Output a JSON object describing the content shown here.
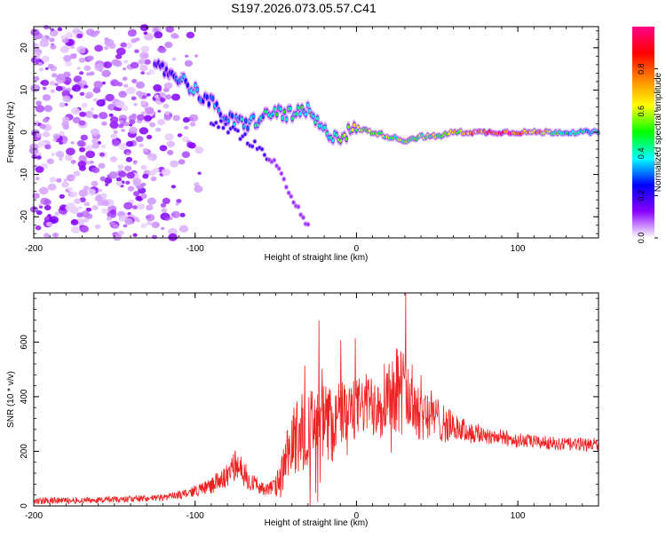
{
  "page_title": "S197.2026.073.05.57.C41",
  "chart_data": [
    {
      "type": "heatmap",
      "title": "S197.2026.073.05.57.C41",
      "xlabel": "Height of straight line (km)",
      "ylabel": "Frequency (Hz)",
      "xlim": [
        -200,
        150
      ],
      "ylim": [
        -25,
        25
      ],
      "x_ticks": [
        "-200",
        "-100",
        "0",
        "100"
      ],
      "y_ticks": [
        "-20",
        "-10",
        "0",
        "10",
        "20"
      ],
      "colorbar": {
        "label": "Normalized spectral amplitude",
        "range": [
          0,
          1
        ],
        "ticks": [
          "0.0",
          "0.2",
          "0.4",
          "0.6",
          "0.8"
        ],
        "colors": [
          "#ffffff",
          "#8800ff",
          "#0000ff",
          "#00ffff",
          "#00ff00",
          "#ffff00",
          "#ff8800",
          "#ff0000",
          "#ff0088"
        ]
      },
      "ridge": {
        "x": [
          -120,
          -110,
          -100,
          -90,
          -80,
          -70,
          -60,
          -50,
          -40,
          -30,
          -20,
          -10,
          0,
          10,
          20,
          30,
          40,
          50,
          60,
          70,
          80,
          90,
          100,
          110,
          120,
          130,
          140,
          150
        ],
        "frequency": [
          15,
          13,
          10,
          7,
          3,
          2,
          3,
          5,
          4,
          5,
          0,
          -1,
          1,
          0,
          -1,
          -2,
          -1,
          -1,
          0,
          0,
          0,
          0,
          0,
          0,
          0,
          0,
          0,
          0
        ],
        "amplitude": [
          0.2,
          0.3,
          0.35,
          0.3,
          0.35,
          0.4,
          0.4,
          0.45,
          0.5,
          0.45,
          0.4,
          0.5,
          0.6,
          0.55,
          0.6,
          0.5,
          0.55,
          0.6,
          0.65,
          0.75,
          0.85,
          0.9,
          0.9,
          0.8,
          0.6,
          0.45,
          0.4,
          0.4
        ]
      },
      "secondary_ridge": {
        "x": [
          -90,
          -80,
          -70,
          -60,
          -50,
          -40,
          -30
        ],
        "frequency": [
          3,
          1,
          -1,
          -4,
          -8,
          -15,
          -22
        ]
      },
      "noise_region_km": [
        -200,
        -105
      ]
    },
    {
      "type": "line",
      "xlabel": "Height of straight line (km)",
      "ylabel": "SNR (10 * v/v)",
      "xlim": [
        -200,
        150
      ],
      "ylim": [
        0,
        780
      ],
      "x_ticks": [
        "-200",
        "-100",
        "0",
        "100"
      ],
      "y_ticks": [
        "0",
        "200",
        "400",
        "600"
      ],
      "series": [
        {
          "name": "SNR",
          "color": "#ee2222",
          "x": [
            -200,
            -180,
            -160,
            -140,
            -120,
            -110,
            -100,
            -90,
            -80,
            -75,
            -70,
            -65,
            -60,
            -55,
            -50,
            -45,
            -40,
            -35,
            -30,
            -25,
            -20,
            -15,
            -10,
            -5,
            0,
            5,
            10,
            15,
            20,
            25,
            30,
            35,
            40,
            45,
            50,
            55,
            60,
            70,
            80,
            90,
            100,
            110,
            120,
            130,
            140,
            150
          ],
          "mean": [
            18,
            20,
            22,
            25,
            30,
            40,
            55,
            75,
            110,
            150,
            120,
            90,
            70,
            60,
            70,
            130,
            220,
            280,
            280,
            290,
            300,
            300,
            340,
            330,
            360,
            370,
            380,
            390,
            420,
            440,
            410,
            380,
            360,
            340,
            320,
            300,
            290,
            270,
            260,
            250,
            240,
            235,
            230,
            225,
            225,
            225
          ],
          "noise": [
            12,
            12,
            12,
            12,
            12,
            15,
            20,
            30,
            45,
            55,
            50,
            35,
            25,
            25,
            40,
            100,
            130,
            150,
            150,
            140,
            150,
            150,
            120,
            120,
            110,
            110,
            130,
            140,
            150,
            170,
            160,
            140,
            120,
            100,
            80,
            70,
            50,
            40,
            35,
            30,
            28,
            25,
            25,
            25,
            25,
            25
          ]
        }
      ]
    }
  ]
}
